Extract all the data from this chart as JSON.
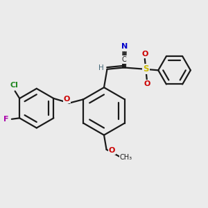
{
  "background_color": "#ebebeb",
  "bond_color": "#1a1a1a",
  "atom_colors": {
    "N": "#0000cc",
    "O": "#cc0000",
    "S": "#ccbb00",
    "Cl": "#228822",
    "F": "#aa00aa",
    "H": "#446677",
    "C": "#1a1a1a"
  },
  "figsize": [
    3.0,
    3.0
  ],
  "dpi": 100
}
